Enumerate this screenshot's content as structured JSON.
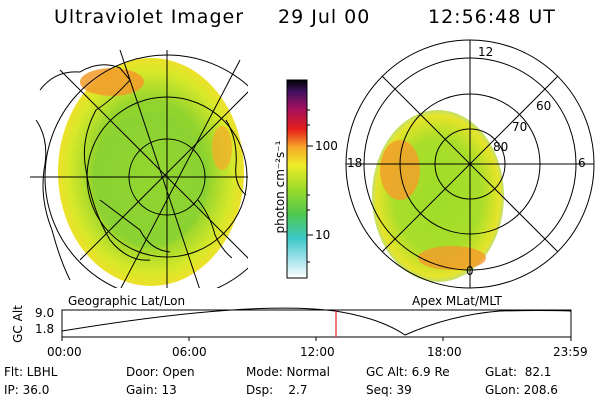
{
  "header": {
    "title": "Ultraviolet Imager",
    "date": "29 Jul 00",
    "time": "12:56:48 UT"
  },
  "left_map": {
    "caption": "Geographic Lat/Lon"
  },
  "right_map": {
    "caption": "Apex MLat/MLT",
    "lat_labels": [
      "80",
      "70",
      "60"
    ],
    "mlt_labels": {
      "top": "12",
      "bottom": "0",
      "left": "18",
      "right": "6"
    }
  },
  "colorbar": {
    "unit_label": "photon cm⁻²s⁻¹",
    "ticks": [
      "100",
      "10"
    ]
  },
  "altitude_plot": {
    "ylabel": "GC Alt",
    "y_ticks": [
      "9.0",
      "1.8"
    ],
    "x_ticks": [
      "00:00",
      "06:00",
      "12:00",
      "18:00",
      "23:59"
    ],
    "marker_color": "#e02020"
  },
  "info": {
    "filter": "Flt: LBHL",
    "ip": "IP: 36.0",
    "door": "Door: Open",
    "gain": "Gain: 13",
    "mode": "Mode: Normal",
    "dsp": "Dsp:    2.7",
    "gc_alt": "GC Alt: 6.9 Re",
    "seq": "Seq: 39",
    "glat": "GLat:  82.1",
    "glon": "GLon: 208.6"
  }
}
